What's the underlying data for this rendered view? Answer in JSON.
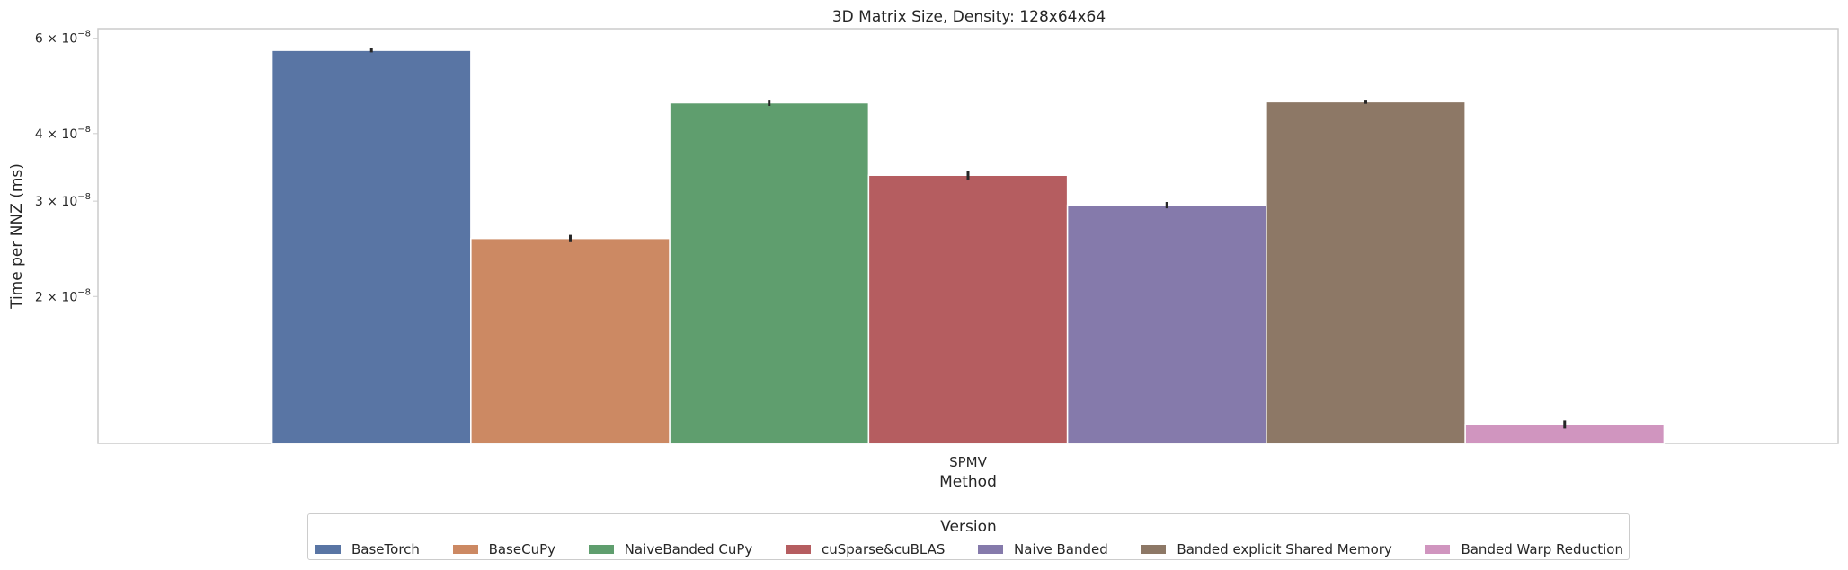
{
  "chart_data": {
    "type": "bar",
    "title": "3D Matrix Size, Density: 128x64x64",
    "xlabel": "Method",
    "ylabel": "Time per NNZ (ms)",
    "yscale": "log",
    "ylim": [
      1.07e-08,
      6.25e-08
    ],
    "yticks": [
      {
        "value": 2e-08,
        "mantissa": "2",
        "exponent": "−8"
      },
      {
        "value": 3e-08,
        "mantissa": "3",
        "exponent": "−8"
      },
      {
        "value": 4e-08,
        "mantissa": "4",
        "exponent": "−8"
      },
      {
        "value": 6e-08,
        "mantissa": "6",
        "exponent": "−8"
      }
    ],
    "categories": [
      "SPMV"
    ],
    "series": [
      {
        "name": "BaseTorch",
        "values": [
          5.7e-08
        ],
        "error": [
          5e-10
        ],
        "color": "#5975a4"
      },
      {
        "name": "BaseCuPy",
        "values": [
          2.56e-08
        ],
        "error": [
          4e-10
        ],
        "color": "#cc8963"
      },
      {
        "name": "NaiveBanded CuPy",
        "values": [
          4.56e-08
        ],
        "error": [
          6e-10
        ],
        "color": "#5f9e6e"
      },
      {
        "name": "cuSparse&cuBLAS",
        "values": [
          3.35e-08
        ],
        "error": [
          6e-10
        ],
        "color": "#b55d60"
      },
      {
        "name": "Naive Banded",
        "values": [
          2.95e-08
        ],
        "error": [
          4e-10
        ],
        "color": "#857aab"
      },
      {
        "name": "Banded explicit Shared Memory",
        "values": [
          4.58e-08
        ],
        "error": [
          4e-10
        ],
        "color": "#8d7866"
      },
      {
        "name": "Banded Warp Reduction",
        "values": [
          1.16e-08
        ],
        "error": [
          2e-10
        ],
        "color": "#d095bf"
      }
    ],
    "grid": false,
    "legend": {
      "title": "Version",
      "placement": "bottom"
    }
  }
}
